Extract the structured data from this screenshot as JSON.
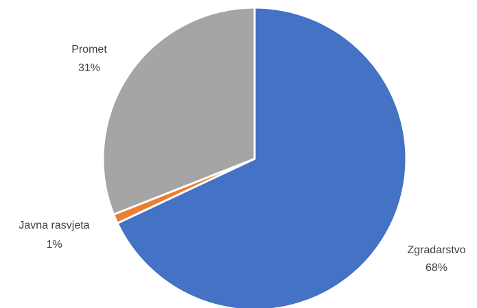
{
  "chart_data": {
    "type": "pie",
    "title": "",
    "slices": [
      {
        "name": "Zgradarstvo",
        "value": 68,
        "label": "68%",
        "color": "#4472C4"
      },
      {
        "name": "Javna rasvjeta",
        "value": 1,
        "label": "1%",
        "color": "#ED7D31"
      },
      {
        "name": "Promet",
        "value": 31,
        "label": "31%",
        "color": "#A5A5A5"
      }
    ],
    "legend": "none",
    "start_angle_deg": 0,
    "direction": "clockwise",
    "slice_border_color": "#FFFFFF"
  }
}
